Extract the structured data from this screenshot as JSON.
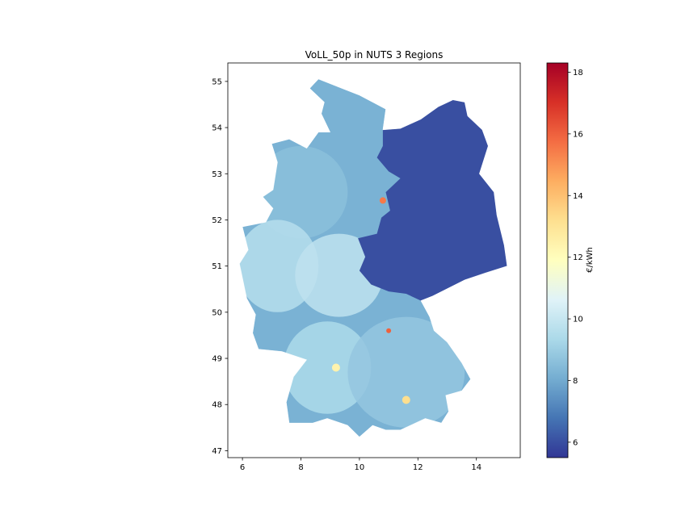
{
  "chart_data": {
    "type": "choropleth",
    "title": "VoLL_50p in NUTS 3 Regions",
    "xlim": [
      5.5,
      15.5
    ],
    "ylim": [
      46.85,
      55.4
    ],
    "x_ticks": [
      "6",
      "8",
      "10",
      "12",
      "14"
    ],
    "y_ticks": [
      "47",
      "48",
      "49",
      "50",
      "51",
      "52",
      "53",
      "54",
      "55"
    ],
    "colorbar": {
      "label": "€/kWh",
      "range": [
        5.5,
        18.3
      ],
      "ticks": [
        "6",
        "8",
        "10",
        "12",
        "14",
        "16",
        "18"
      ],
      "colormap": "RdYlBu_r",
      "colors": [
        "#313695",
        "#4575b4",
        "#74add1",
        "#abd9e9",
        "#e0f3f8",
        "#ffffbf",
        "#fee090",
        "#fdae61",
        "#f46d43",
        "#d73027",
        "#a50026"
      ]
    },
    "regions": [
      {
        "area": "east",
        "value": 6.0
      },
      {
        "area": "north",
        "value": 8.2
      },
      {
        "area": "northwest",
        "value": 8.6
      },
      {
        "area": "west",
        "value": 9.6
      },
      {
        "area": "center",
        "value": 9.8
      },
      {
        "area": "southwest",
        "value": 9.4
      },
      {
        "area": "bavaria",
        "value": 8.8
      },
      {
        "area": "hotspot-near-52.4N-10.8E",
        "value": 15.5
      },
      {
        "area": "hotspot-near-49.6N-11.0E",
        "value": 16.0
      },
      {
        "area": "hotspot-near-48.1N-11.6E",
        "value": 13.2
      },
      {
        "area": "hotspot-near-48.8N-9.2E",
        "value": 12.4
      }
    ]
  }
}
